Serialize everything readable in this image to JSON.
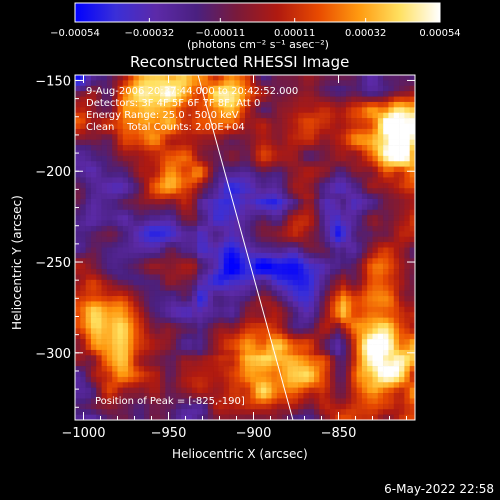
{
  "chart_data": {
    "type": "heatmap",
    "title": "Reconstructed RHESSI Image",
    "xlabel": "Heliocentric X (arcsec)",
    "ylabel": "Heliocentric Y (arcsec)",
    "xlim": [
      -1005,
      -805
    ],
    "ylim": [
      -337,
      -147
    ],
    "x_ticks": [
      -1000,
      -950,
      -900,
      -850
    ],
    "x_tick_labels": [
      "-1000",
      "-950",
      "-900",
      "-850"
    ],
    "y_ticks": [
      -150,
      -200,
      -250,
      -300
    ],
    "y_tick_labels": [
      "-150",
      "-200",
      "-250",
      "-300"
    ],
    "colorbar": {
      "min": -0.00054,
      "max": 0.00054,
      "ticks": [
        -0.00054,
        -0.00032,
        -0.00011,
        0.00011,
        0.00032,
        0.00054
      ],
      "tick_labels": [
        "-0.00054",
        "-0.00032",
        "-0.00011",
        "0.00011",
        "0.00032",
        "0.00054"
      ],
      "units_label": "(photons cm⁻² s⁻¹ asec⁻²)",
      "colors": [
        "#0000ff",
        "#3a2fd8",
        "#5c2aa8",
        "#4a2080",
        "#7a1a3a",
        "#b01a10",
        "#e84a00",
        "#ff9a10",
        "#ffe060",
        "#ffffff"
      ]
    },
    "annotations": [
      "9-Aug-2006 20:37:44.000 to 20:42:52.000",
      "Detectors: 3F 4F 5F 6F 7F 8F, Att 0",
      "Energy Range: 25.0 - 50.0 keV",
      "Clean    Total Counts: 2.00E+04"
    ],
    "peak_label": "Position of Peak = [-825,-190]",
    "limb_color": "#ffffff"
  },
  "footer_date": "6-May-2022 22:58"
}
